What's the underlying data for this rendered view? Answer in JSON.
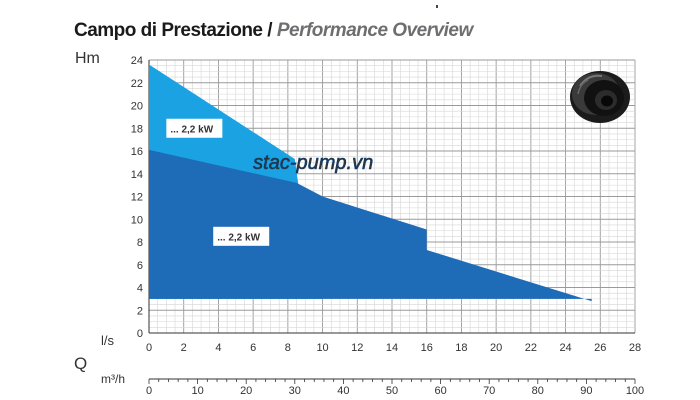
{
  "chart_data": {
    "type": "area",
    "title_it": "Campo di Prestazione",
    "title_sep": " / ",
    "title_en": "Performance Overview",
    "ylabel": "Hm",
    "xlabel_symbol": "Q",
    "x_unit_primary": "l/s",
    "x_unit_secondary": "m³/h",
    "xlim": [
      0,
      28
    ],
    "ylim": [
      0,
      24
    ],
    "x_ticks": [
      0,
      2,
      4,
      6,
      8,
      10,
      12,
      14,
      16,
      18,
      20,
      22,
      24,
      26,
      28
    ],
    "y_ticks": [
      0,
      2,
      4,
      6,
      8,
      10,
      12,
      14,
      16,
      18,
      20,
      22,
      24
    ],
    "x2lim": [
      0,
      100
    ],
    "x2_ticks": [
      0,
      10,
      20,
      30,
      40,
      50,
      60,
      70,
      80,
      90,
      100
    ],
    "grid": true,
    "series": [
      {
        "name": "... 2,2 kW",
        "color": "#1aa2e2",
        "points": [
          [
            0,
            23.6
          ],
          [
            8.4,
            15.3
          ],
          [
            8.6,
            13.1
          ],
          [
            10,
            12
          ]
        ],
        "label": "... 2,2 kW"
      },
      {
        "name": "... 2,2 kW",
        "color": "#1e6bb8",
        "points": [
          [
            0,
            16.1
          ],
          [
            8.5,
            13.2
          ],
          [
            10,
            12
          ],
          [
            16,
            9.1
          ],
          [
            16,
            7.3
          ],
          [
            25.5,
            2.8
          ]
        ],
        "label": "... 2,2 kW"
      }
    ],
    "lower_bound_h": 3,
    "watermark": "stac-pump.vn"
  },
  "icon": "pump-impeller-icon"
}
